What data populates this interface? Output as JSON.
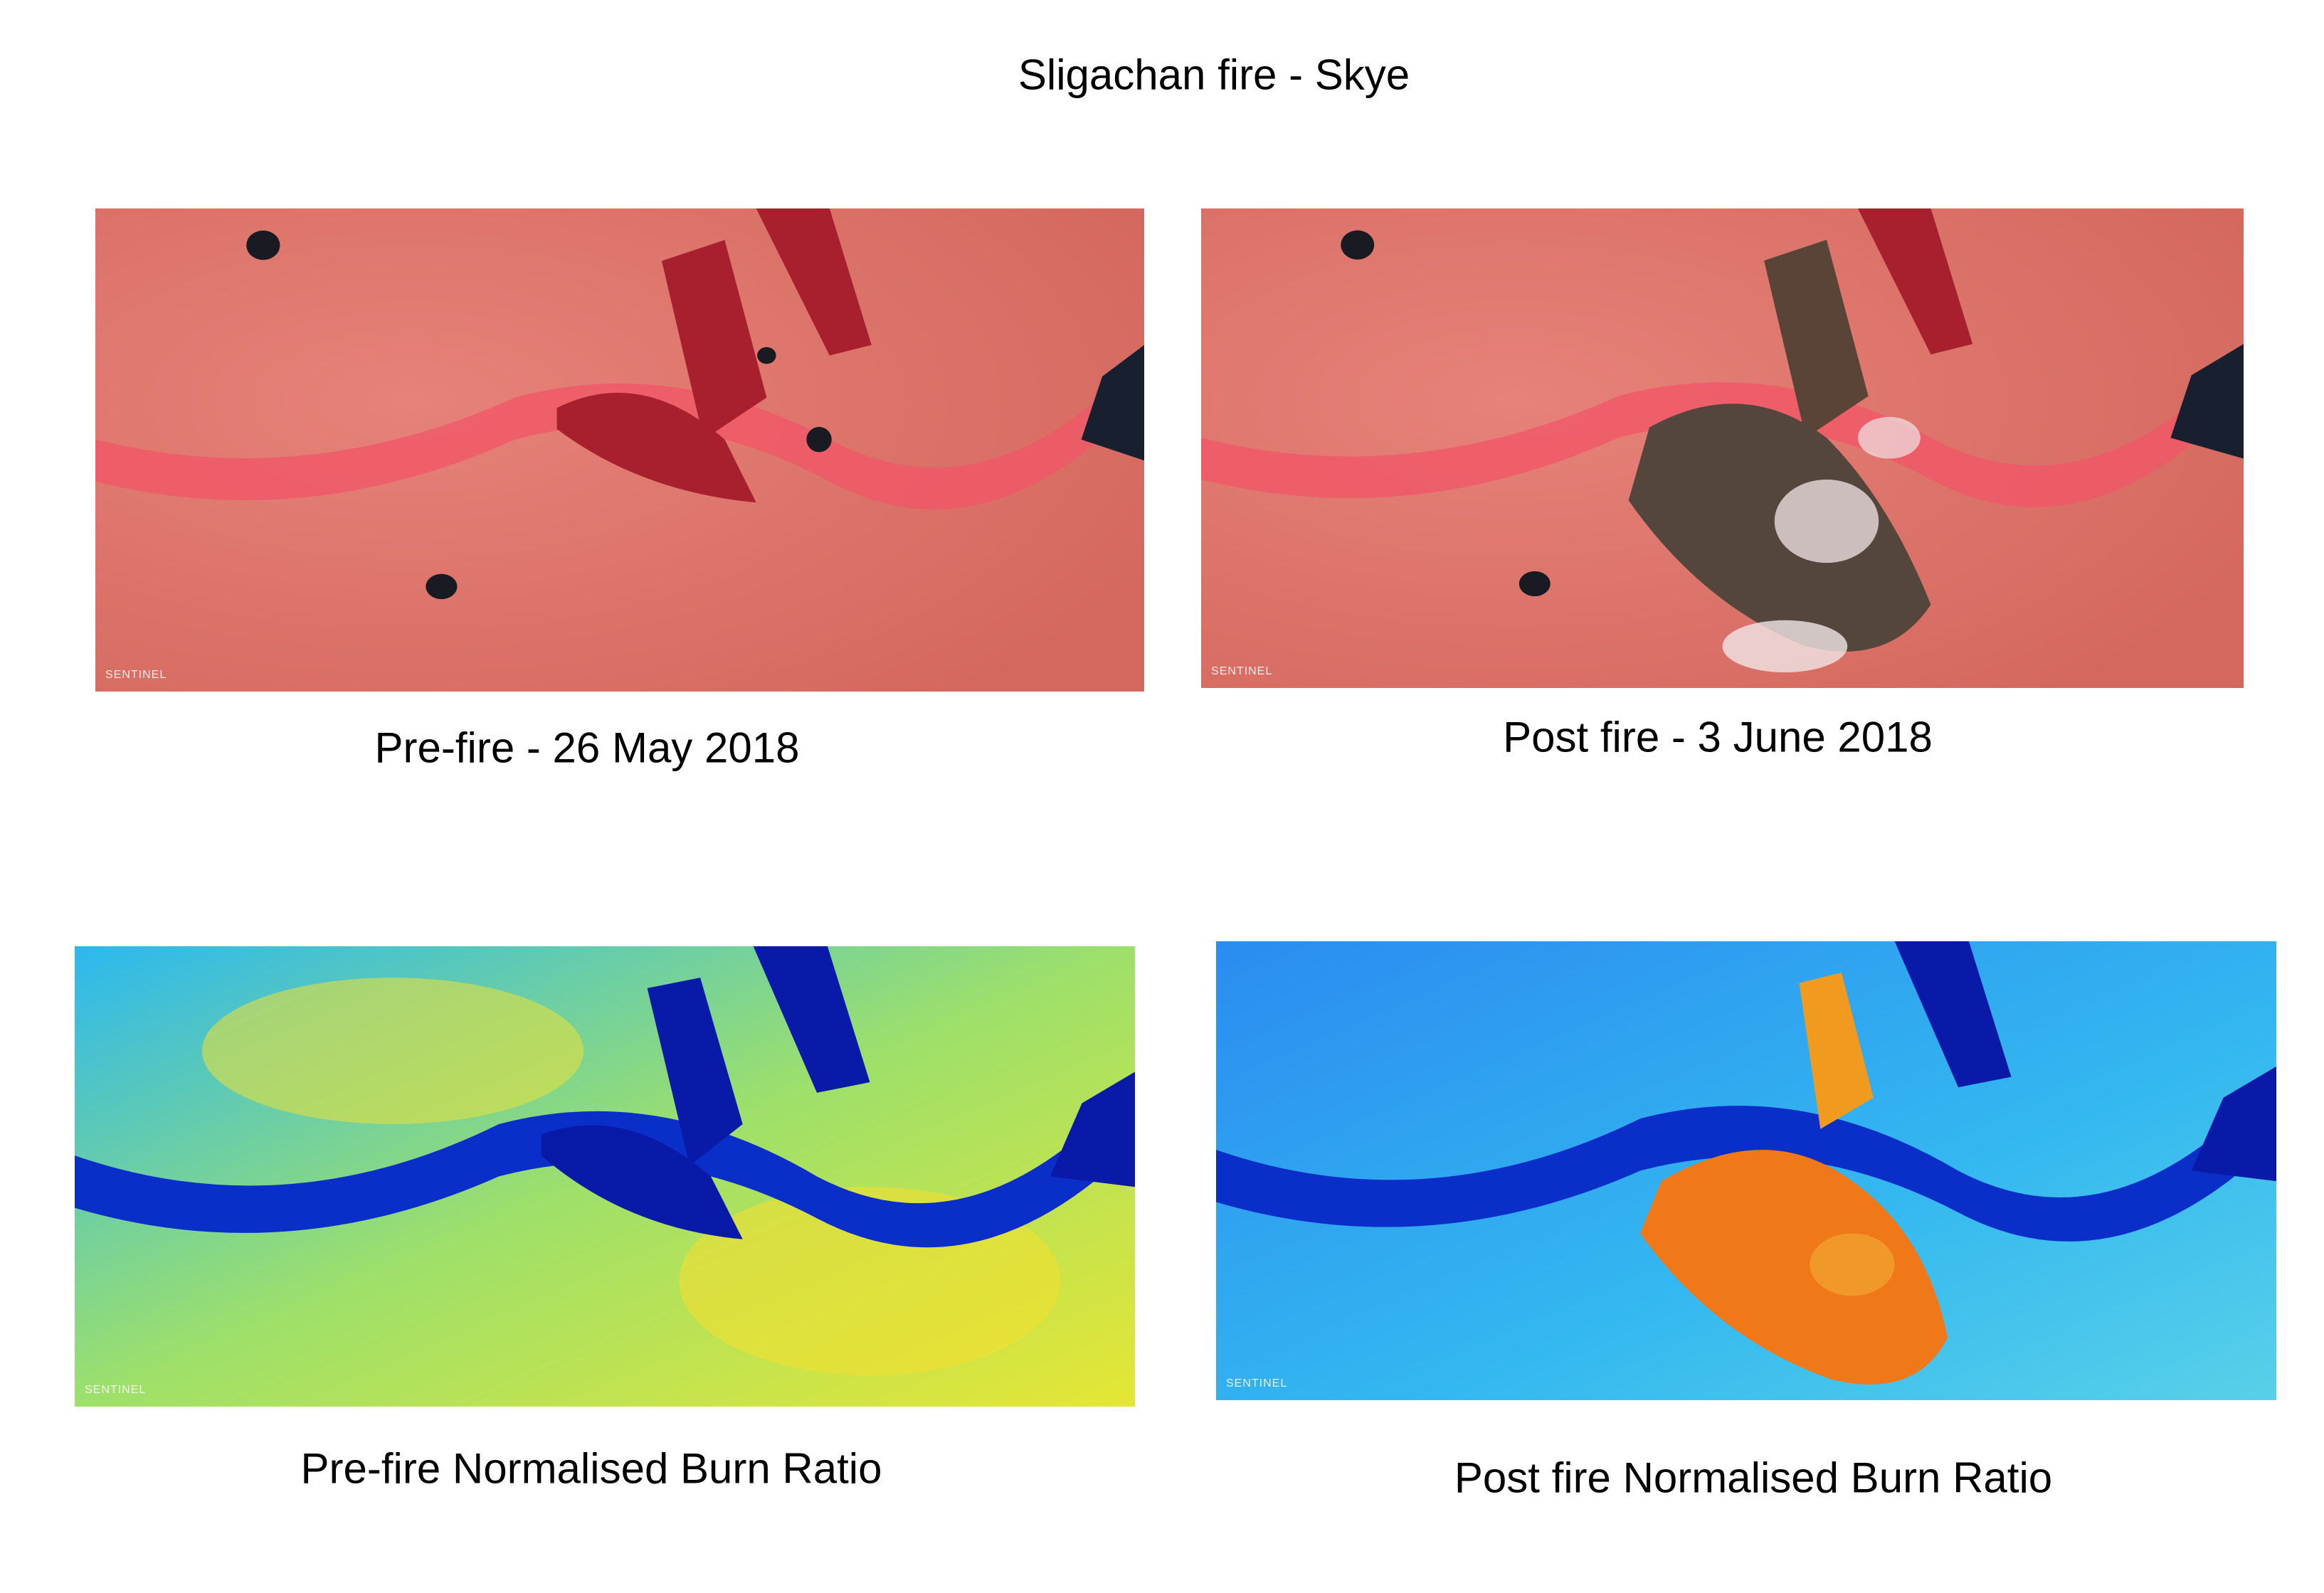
{
  "figure": {
    "title": "Sligachan fire - Skye",
    "panels": [
      {
        "caption": "Pre-fire - 26 May 2018",
        "watermark": "SENTINEL"
      },
      {
        "caption": "Post fire - 3 June 2018",
        "watermark": "SENTINEL"
      },
      {
        "caption": "Pre-fire Normalised Burn Ratio",
        "watermark": "SENTINEL"
      },
      {
        "caption": "Post fire Normalised Burn Ratio",
        "watermark": "SENTINEL"
      }
    ]
  }
}
